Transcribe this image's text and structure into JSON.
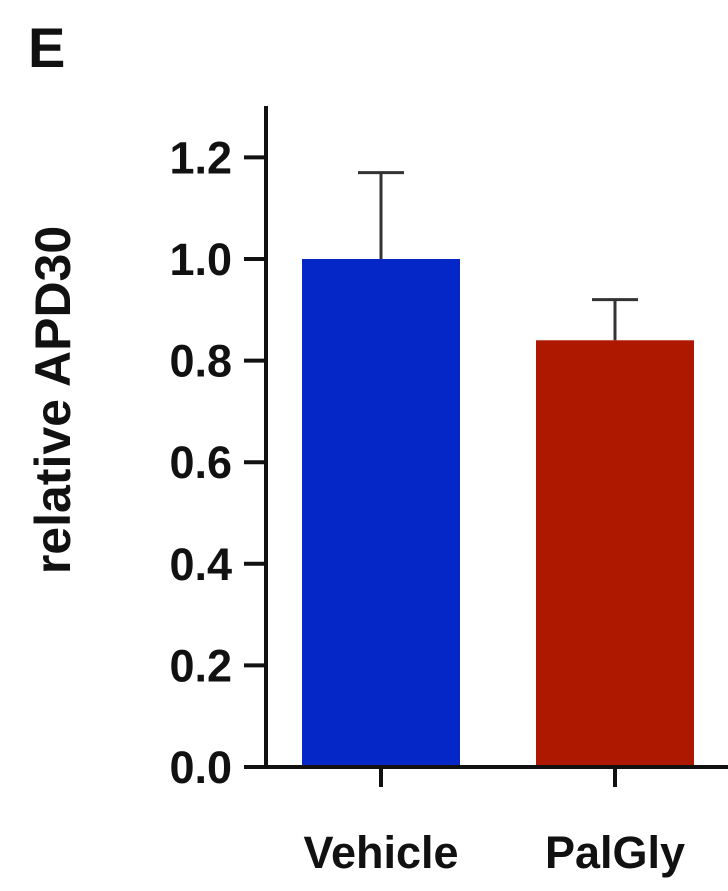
{
  "panel_label": "E",
  "chart_data": {
    "type": "bar",
    "title": "",
    "xlabel": "",
    "ylabel": "relative APD30",
    "categories": [
      "Vehicle",
      "PalGly"
    ],
    "values": [
      1.0,
      0.84
    ],
    "error_upper": [
      1.17,
      0.92
    ],
    "ylim": [
      0,
      1.3
    ],
    "yticks": [
      0.0,
      0.2,
      0.4,
      0.6,
      0.8,
      1.0,
      1.2
    ],
    "ytick_labels": [
      "0.0",
      "0.2",
      "0.4",
      "0.6",
      "0.8",
      "1.0",
      "1.2"
    ],
    "colors": [
      "#0527C8",
      "#AE1800"
    ],
    "grid": false,
    "legend": "none"
  }
}
